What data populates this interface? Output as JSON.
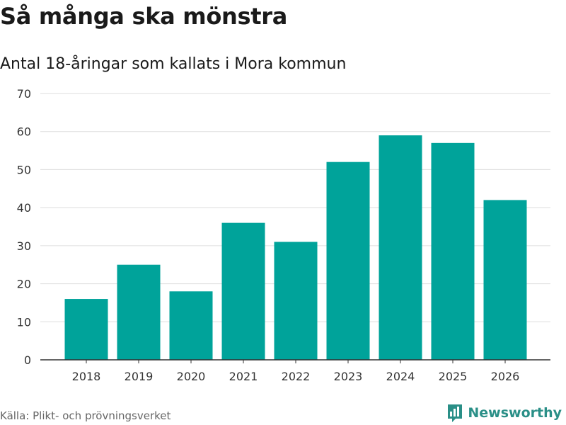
{
  "chart_data": {
    "type": "bar",
    "title": "Så många ska mönstra",
    "subtitle": "Antal 18-åringar som kallats i Mora kommun",
    "categories": [
      "2018",
      "2019",
      "2020",
      "2021",
      "2022",
      "2023",
      "2024",
      "2025",
      "2026"
    ],
    "values": [
      16,
      25,
      18,
      36,
      31,
      52,
      59,
      57,
      42
    ],
    "xlabel": "",
    "ylabel": "",
    "ylim": [
      0,
      70
    ],
    "yticks": [
      "0",
      "10",
      "20",
      "30",
      "40",
      "50",
      "60",
      "70"
    ],
    "grid": true,
    "legend": "none"
  },
  "colors": {
    "bar": "#00a39a",
    "grid": "#dddddd",
    "axis": "#333333",
    "brand": "#2a8f87"
  },
  "source": "Källa: Plikt- och prövningsverket",
  "brand": {
    "name": "Newsworthy",
    "icon": "newsworthy-logo-icon"
  }
}
